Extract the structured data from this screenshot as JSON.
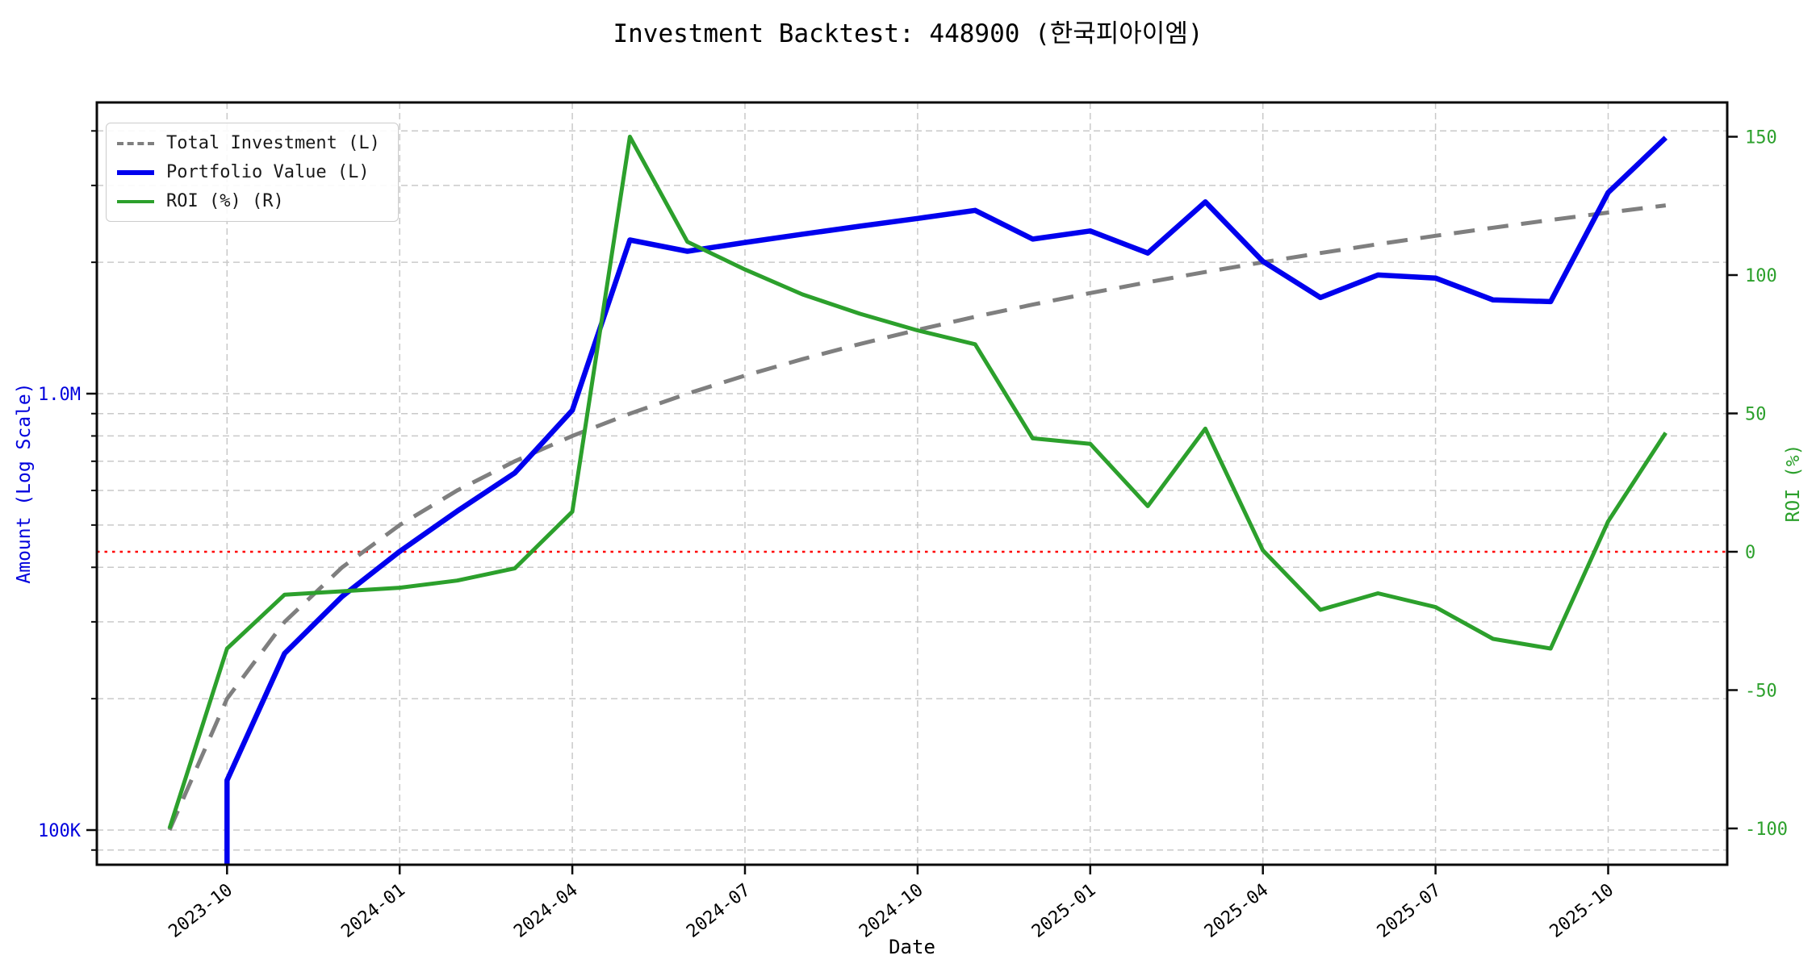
{
  "title": "Investment Backtest: 448900 (한국피아이엠)",
  "axes": {
    "x_label": "Date",
    "y_left_label": "Amount (Log Scale)",
    "y_right_label": "ROI (%)"
  },
  "legend": [
    {
      "label": "Total Investment (L)",
      "style": "dashed",
      "color": "#7f7f7f"
    },
    {
      "label": "Portfolio Value (L)",
      "style": "solid-thick",
      "color": "#0000ee"
    },
    {
      "label": "ROI (%) (R)",
      "style": "solid",
      "color": "#2ca02c"
    }
  ],
  "colors": {
    "portfolio": "#0000ee",
    "investment": "#7f7f7f",
    "roi": "#2ca02c",
    "zero_line": "#ff0000",
    "grid": "#c9c9c9",
    "spine": "#0a0a0a",
    "left_tick_text": "#0000dd",
    "right_tick_text": "#2ca02c",
    "x_tick_text": "#000000"
  },
  "chart_data": {
    "type": "line",
    "x": [
      "2023-09",
      "2023-10",
      "2023-11",
      "2023-12",
      "2024-01",
      "2024-02",
      "2024-03",
      "2024-04",
      "2024-05",
      "2024-06",
      "2024-07",
      "2024-08",
      "2024-09",
      "2024-10",
      "2024-11",
      "2024-12",
      "2025-01",
      "2025-02",
      "2025-03",
      "2025-04",
      "2025-05",
      "2025-06",
      "2025-07",
      "2025-08",
      "2025-09",
      "2025-10",
      "2025-11"
    ],
    "series": [
      {
        "name": "Total Investment (L)",
        "axis": "left",
        "values": [
          100000,
          200000,
          300000,
          400000,
          500000,
          600000,
          700000,
          800000,
          900000,
          1000000,
          1100000,
          1200000,
          1300000,
          1400000,
          1500000,
          1600000,
          1700000,
          1800000,
          1900000,
          2000000,
          2100000,
          2200000,
          2300000,
          2400000,
          2500000,
          2600000,
          2700000
        ]
      },
      {
        "name": "Portfolio Value (L)",
        "axis": "left",
        "values": [
          null,
          130000,
          254000,
          343000,
          435000,
          538000,
          658000,
          916000,
          2250000,
          2120000,
          2220000,
          2320000,
          2420000,
          2520000,
          2630000,
          2260000,
          2360000,
          2100000,
          2750000,
          2010000,
          1660000,
          1870000,
          1840000,
          1640000,
          1625000,
          2890000,
          3860000
        ]
      },
      {
        "name": "ROI (%) (R)",
        "axis": "right",
        "values": [
          -100,
          -35,
          -15.5,
          -14.3,
          -13,
          -10.4,
          -6,
          14.5,
          150,
          112,
          102,
          93,
          86,
          80,
          75,
          41,
          39,
          16.5,
          44.5,
          0.5,
          -21,
          -15,
          -20,
          -31.5,
          -35,
          11,
          43
        ]
      }
    ],
    "x_tick_labels": [
      "2023-10",
      "2024-01",
      "2024-04",
      "2024-07",
      "2024-10",
      "2025-01",
      "2025-04",
      "2025-07",
      "2025-10"
    ],
    "x_tick_positions": [
      1,
      4,
      7,
      10,
      13,
      16,
      19,
      22,
      25
    ],
    "y_left": {
      "scale": "log",
      "major_ticks": [
        {
          "value": 1000000,
          "label": "1.0M"
        },
        {
          "value": 100000,
          "label": "100K"
        }
      ],
      "minor_ticks": [
        90000,
        200000,
        300000,
        400000,
        500000,
        600000,
        700000,
        800000,
        900000,
        2000000,
        3000000,
        4000000
      ],
      "range": [
        83000,
        4670000
      ]
    },
    "y_right": {
      "scale": "linear",
      "ticks": [
        {
          "value": 150,
          "label": "150"
        },
        {
          "value": 100,
          "label": "100"
        },
        {
          "value": 50,
          "label": "50"
        },
        {
          "value": 0,
          "label": "0"
        },
        {
          "value": -50,
          "label": "-50"
        },
        {
          "value": -100,
          "label": "-100"
        }
      ],
      "range": [
        -113,
        163
      ]
    },
    "zero_line": {
      "axis": "right",
      "value": 0
    },
    "grid": "dashed",
    "legend_position": "upper-left"
  }
}
